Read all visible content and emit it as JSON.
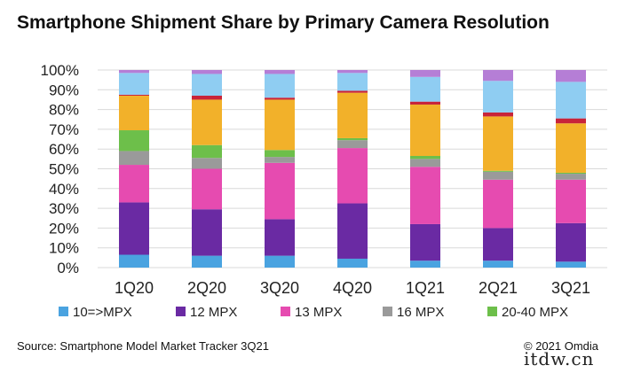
{
  "title": "Smartphone Shipment Share by Primary Camera Resolution",
  "source": "Source: Smartphone Model Market Tracker 3Q21",
  "copyright": "© 2021 Omdia",
  "watermark": "itdw.cn",
  "chart_data": {
    "type": "bar",
    "stacked": true,
    "categories": [
      "1Q20",
      "2Q20",
      "3Q20",
      "4Q20",
      "1Q21",
      "2Q21",
      "3Q21"
    ],
    "y_ticks": [
      "0%",
      "10%",
      "20%",
      "30%",
      "40%",
      "50%",
      "60%",
      "70%",
      "80%",
      "90%",
      "100%"
    ],
    "ylim": [
      0,
      100
    ],
    "grid": true,
    "legend_position": "bottom",
    "series": [
      {
        "name": "10=>MPX",
        "color": "#4aa3e0",
        "values": [
          6.5,
          6,
          6,
          4.5,
          3.5,
          3.5,
          3
        ]
      },
      {
        "name": "12 MPX",
        "color": "#6a2aa3",
        "values": [
          26.5,
          23.5,
          18.5,
          28,
          18.5,
          16.5,
          19.5
        ]
      },
      {
        "name": "13 MPX",
        "color": "#e64bb0",
        "values": [
          19,
          20.5,
          28.5,
          28,
          29,
          24.5,
          22
        ]
      },
      {
        "name": "16 MPX",
        "color": "#9a9a9a",
        "values": [
          7,
          5.5,
          3,
          4,
          4,
          4,
          3
        ]
      },
      {
        "name": "20-40 MPX",
        "color": "#6dbf4a",
        "values": [
          10.5,
          6.5,
          3.5,
          1,
          1.5,
          0.5,
          0.5
        ]
      },
      {
        "name": "",
        "color": "#f2b12a",
        "values": [
          17.5,
          23,
          25.5,
          23,
          26,
          27.5,
          25
        ]
      },
      {
        "name": "",
        "color": "#c8243a",
        "values": [
          0.5,
          2,
          1,
          1,
          1.5,
          2,
          2.5
        ]
      },
      {
        "name": "",
        "color": "#8fcdf2",
        "values": [
          11,
          11,
          12,
          9,
          12.5,
          16,
          18.5
        ]
      },
      {
        "name": "",
        "color": "#b57ed6",
        "values": [
          1.5,
          2,
          2,
          1.5,
          3.5,
          5.5,
          6
        ]
      }
    ]
  }
}
